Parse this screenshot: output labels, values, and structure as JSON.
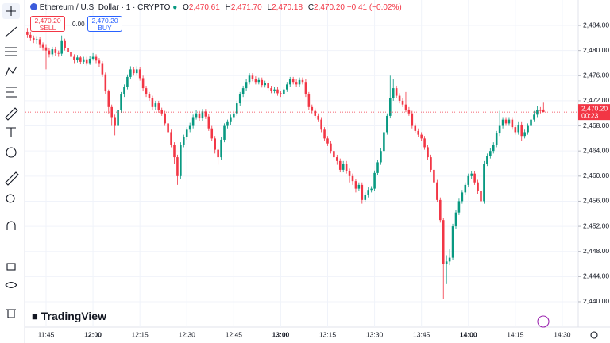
{
  "header": {
    "symbol": "Ethereum / U.S. Dollar · 1 · CRYPTO",
    "o_label": "O",
    "o": "2,470.61",
    "h_label": "H",
    "h": "2,471.70",
    "l_label": "L",
    "l": "2,470.18",
    "c_label": "C",
    "c": "2,470.20",
    "change": "−0.41 (−0.02%)"
  },
  "trade": {
    "sell_price": "2,470.20",
    "sell": "SELL",
    "spread": "0.00",
    "buy_price": "2,470.20",
    "buy": "BUY"
  },
  "logo": "TradingView",
  "chart_data": {
    "type": "candlestick",
    "up_color": "#089981",
    "down_color": "#f23645",
    "x": [
      699,
      700,
      701,
      702,
      703,
      704,
      705,
      706,
      707,
      708,
      709,
      710,
      711,
      712,
      713,
      714,
      715,
      716,
      717,
      718,
      719,
      720,
      721,
      722,
      723,
      724,
      725,
      726,
      727,
      728,
      729,
      730,
      731,
      732,
      733,
      734,
      735,
      736,
      737,
      738,
      739,
      740,
      741,
      742,
      743,
      744,
      745,
      746,
      747,
      748,
      749,
      750,
      751,
      752,
      753,
      754,
      755,
      756,
      757,
      758,
      759,
      760,
      761,
      762,
      763,
      764,
      765,
      766,
      767,
      768,
      769,
      770,
      771,
      772,
      773,
      774,
      775,
      776,
      777,
      778,
      779,
      780,
      781,
      782,
      783,
      784,
      785,
      786,
      787,
      788,
      789,
      790,
      791,
      792,
      793,
      794,
      795,
      796,
      797,
      798,
      799,
      800,
      801,
      802,
      803,
      804,
      805,
      806,
      807,
      808,
      809,
      810,
      811,
      812,
      813,
      814,
      815,
      816,
      817,
      818,
      819,
      820,
      821,
      822,
      823,
      824,
      825,
      826,
      827,
      828,
      829,
      830,
      831,
      832,
      833,
      834,
      835,
      836,
      837,
      838,
      839,
      840,
      841,
      842,
      843,
      844,
      845,
      846,
      847,
      848,
      849,
      850,
      851,
      852,
      853,
      854,
      855,
      856,
      857,
      858,
      859,
      860,
      861,
      862,
      863,
      864
    ],
    "candles": [
      [
        2483.0,
        2483.6,
        2482.0,
        2482.5
      ],
      [
        2482.5,
        2483.0,
        2481.5,
        2482.0
      ],
      [
        2482.0,
        2482.4,
        2481.2,
        2481.6
      ],
      [
        2481.6,
        2482.3,
        2481.1,
        2481.8
      ],
      [
        2481.8,
        2482.2,
        2480.4,
        2480.9
      ],
      [
        2480.9,
        2481.3,
        2480.0,
        2480.5
      ],
      [
        2480.5,
        2480.9,
        2477.0,
        2480.0
      ],
      [
        2480.0,
        2480.4,
        2478.9,
        2479.4
      ],
      [
        2479.4,
        2480.6,
        2479.0,
        2480.2
      ],
      [
        2480.2,
        2480.6,
        2479.2,
        2479.6
      ],
      [
        2479.6,
        2480.0,
        2479.0,
        2479.5
      ],
      [
        2479.5,
        2482.4,
        2479.2,
        2481.5
      ],
      [
        2481.5,
        2481.9,
        2480.0,
        2480.4
      ],
      [
        2480.4,
        2480.8,
        2479.3,
        2479.8
      ],
      [
        2479.8,
        2480.2,
        2478.6,
        2479.0
      ],
      [
        2479.0,
        2479.4,
        2478.0,
        2478.5
      ],
      [
        2478.5,
        2479.3,
        2478.1,
        2478.9
      ],
      [
        2478.9,
        2479.2,
        2477.8,
        2478.2
      ],
      [
        2478.2,
        2479.0,
        2477.9,
        2478.6
      ],
      [
        2478.6,
        2479.0,
        2477.6,
        2478.0
      ],
      [
        2478.0,
        2479.1,
        2477.7,
        2478.7
      ],
      [
        2478.7,
        2479.6,
        2478.4,
        2479.0
      ],
      [
        2479.0,
        2479.4,
        2478.0,
        2478.4
      ],
      [
        2478.4,
        2478.8,
        2477.4,
        2478.0
      ],
      [
        2478.0,
        2478.3,
        2475.8,
        2476.2
      ],
      [
        2476.2,
        2476.5,
        2473.0,
        2473.5
      ],
      [
        2473.5,
        2473.8,
        2470.0,
        2471.0
      ],
      [
        2471.0,
        2471.4,
        2468.0,
        2469.4
      ],
      [
        2469.4,
        2469.8,
        2466.5,
        2468.0
      ],
      [
        2468.0,
        2470.9,
        2467.6,
        2470.5
      ],
      [
        2470.5,
        2473.4,
        2470.1,
        2473.0
      ],
      [
        2473.0,
        2474.6,
        2472.6,
        2474.2
      ],
      [
        2474.2,
        2476.2,
        2473.8,
        2475.8
      ],
      [
        2475.8,
        2477.5,
        2475.4,
        2477.0
      ],
      [
        2477.0,
        2477.4,
        2476.0,
        2476.4
      ],
      [
        2476.4,
        2477.5,
        2476.0,
        2477.0
      ],
      [
        2477.0,
        2477.3,
        2475.2,
        2475.6
      ],
      [
        2475.6,
        2476.0,
        2473.5,
        2474.0
      ],
      [
        2474.0,
        2474.4,
        2472.6,
        2473.0
      ],
      [
        2473.0,
        2473.4,
        2472.0,
        2472.4
      ],
      [
        2472.4,
        2472.8,
        2470.6,
        2471.0
      ],
      [
        2471.0,
        2472.0,
        2470.6,
        2471.6
      ],
      [
        2471.6,
        2472.0,
        2470.1,
        2470.5
      ],
      [
        2470.5,
        2470.9,
        2469.6,
        2470.0
      ],
      [
        2470.0,
        2470.4,
        2468.0,
        2468.4
      ],
      [
        2468.4,
        2468.8,
        2466.6,
        2467.0
      ],
      [
        2467.0,
        2467.4,
        2464.6,
        2465.0
      ],
      [
        2465.0,
        2465.4,
        2462.0,
        2463.0
      ],
      [
        2463.0,
        2463.4,
        2458.6,
        2460.0
      ],
      [
        2460.0,
        2465.4,
        2459.6,
        2465.0
      ],
      [
        2465.0,
        2466.6,
        2464.6,
        2466.2
      ],
      [
        2466.2,
        2467.8,
        2465.8,
        2467.4
      ],
      [
        2467.4,
        2468.5,
        2467.0,
        2468.0
      ],
      [
        2468.0,
        2469.8,
        2467.6,
        2469.4
      ],
      [
        2469.4,
        2470.5,
        2469.0,
        2470.0
      ],
      [
        2470.0,
        2470.4,
        2468.8,
        2469.2
      ],
      [
        2469.2,
        2470.7,
        2468.8,
        2470.3
      ],
      [
        2470.3,
        2470.7,
        2469.1,
        2469.5
      ],
      [
        2469.5,
        2469.9,
        2467.2,
        2467.6
      ],
      [
        2467.6,
        2468.0,
        2465.6,
        2466.0
      ],
      [
        2466.0,
        2466.4,
        2463.6,
        2464.2
      ],
      [
        2464.2,
        2464.6,
        2461.8,
        2463.0
      ],
      [
        2463.0,
        2466.2,
        2462.6,
        2465.8
      ],
      [
        2465.8,
        2468.4,
        2465.4,
        2468.0
      ],
      [
        2468.0,
        2469.0,
        2467.6,
        2468.6
      ],
      [
        2468.6,
        2469.8,
        2468.2,
        2469.4
      ],
      [
        2469.4,
        2470.5,
        2469.0,
        2470.0
      ],
      [
        2470.0,
        2472.0,
        2469.6,
        2471.6
      ],
      [
        2471.6,
        2473.4,
        2471.2,
        2473.0
      ],
      [
        2473.0,
        2474.4,
        2472.6,
        2474.0
      ],
      [
        2474.0,
        2475.4,
        2473.6,
        2475.0
      ],
      [
        2475.0,
        2476.4,
        2474.6,
        2476.0
      ],
      [
        2476.0,
        2476.4,
        2475.1,
        2475.5
      ],
      [
        2475.5,
        2475.9,
        2474.6,
        2475.0
      ],
      [
        2475.0,
        2475.7,
        2474.6,
        2475.3
      ],
      [
        2475.3,
        2475.7,
        2474.1,
        2474.5
      ],
      [
        2474.5,
        2475.2,
        2474.1,
        2474.8
      ],
      [
        2474.8,
        2475.2,
        2473.6,
        2474.0
      ],
      [
        2474.0,
        2474.4,
        2473.2,
        2473.6
      ],
      [
        2473.6,
        2474.2,
        2473.2,
        2473.8
      ],
      [
        2473.8,
        2474.2,
        2472.8,
        2473.2
      ],
      [
        2473.2,
        2473.6,
        2472.6,
        2473.0
      ],
      [
        2473.0,
        2474.2,
        2472.6,
        2473.8
      ],
      [
        2473.8,
        2475.0,
        2473.4,
        2474.6
      ],
      [
        2474.6,
        2475.8,
        2474.2,
        2475.4
      ],
      [
        2475.4,
        2475.8,
        2474.6,
        2475.0
      ],
      [
        2475.0,
        2475.4,
        2474.2,
        2474.6
      ],
      [
        2474.6,
        2475.7,
        2474.2,
        2475.3
      ],
      [
        2475.3,
        2475.7,
        2474.6,
        2475.0
      ],
      [
        2475.0,
        2475.4,
        2472.6,
        2473.0
      ],
      [
        2473.0,
        2473.4,
        2470.6,
        2471.0
      ],
      [
        2471.0,
        2471.4,
        2470.0,
        2470.4
      ],
      [
        2470.4,
        2470.8,
        2469.2,
        2469.6
      ],
      [
        2469.6,
        2470.0,
        2468.6,
        2469.0
      ],
      [
        2469.0,
        2469.4,
        2467.0,
        2467.4
      ],
      [
        2467.4,
        2467.8,
        2465.6,
        2466.0
      ],
      [
        2466.0,
        2466.4,
        2464.8,
        2465.2
      ],
      [
        2465.2,
        2465.6,
        2463.6,
        2464.0
      ],
      [
        2464.0,
        2464.4,
        2462.6,
        2463.0
      ],
      [
        2463.0,
        2463.4,
        2461.8,
        2462.4
      ],
      [
        2462.4,
        2462.8,
        2460.6,
        2461.0
      ],
      [
        2461.0,
        2462.4,
        2460.6,
        2462.0
      ],
      [
        2462.0,
        2462.4,
        2460.4,
        2460.8
      ],
      [
        2460.8,
        2461.2,
        2459.0,
        2460.0
      ],
      [
        2460.0,
        2460.4,
        2458.6,
        2459.2
      ],
      [
        2459.2,
        2459.6,
        2457.4,
        2458.0
      ],
      [
        2458.0,
        2459.0,
        2457.6,
        2458.6
      ],
      [
        2458.6,
        2459.0,
        2455.6,
        2456.2
      ],
      [
        2456.2,
        2457.4,
        2455.8,
        2457.0
      ],
      [
        2457.0,
        2458.2,
        2456.6,
        2457.8
      ],
      [
        2457.8,
        2458.4,
        2457.4,
        2458.0
      ],
      [
        2458.0,
        2460.9,
        2457.6,
        2460.5
      ],
      [
        2460.5,
        2462.6,
        2460.1,
        2462.2
      ],
      [
        2462.2,
        2464.4,
        2461.8,
        2464.0
      ],
      [
        2464.0,
        2467.4,
        2463.6,
        2467.0
      ],
      [
        2467.0,
        2470.0,
        2466.6,
        2469.6
      ],
      [
        2469.6,
        2476.0,
        2469.2,
        2472.4
      ],
      [
        2472.4,
        2475.4,
        2472.0,
        2474.0
      ],
      [
        2474.0,
        2474.4,
        2472.4,
        2472.8
      ],
      [
        2472.8,
        2473.2,
        2471.6,
        2472.0
      ],
      [
        2472.0,
        2472.4,
        2471.0,
        2471.4
      ],
      [
        2471.4,
        2473.4,
        2470.2,
        2470.6
      ],
      [
        2470.6,
        2471.0,
        2469.6,
        2470.0
      ],
      [
        2470.0,
        2470.4,
        2467.6,
        2468.0
      ],
      [
        2468.0,
        2468.4,
        2466.8,
        2467.2
      ],
      [
        2467.2,
        2467.6,
        2466.2,
        2466.6
      ],
      [
        2466.6,
        2467.0,
        2465.6,
        2466.0
      ],
      [
        2466.0,
        2466.4,
        2464.2,
        2464.6
      ],
      [
        2464.6,
        2465.0,
        2462.6,
        2463.0
      ],
      [
        2463.0,
        2463.4,
        2460.6,
        2461.0
      ],
      [
        2461.0,
        2461.4,
        2458.6,
        2459.0
      ],
      [
        2459.0,
        2459.4,
        2455.8,
        2456.2
      ],
      [
        2456.2,
        2456.6,
        2452.6,
        2453.0
      ],
      [
        2453.0,
        2453.4,
        2440.5,
        2446.0
      ],
      [
        2446.0,
        2447.4,
        2442.8,
        2446.4
      ],
      [
        2446.4,
        2448.4,
        2445.8,
        2447.0
      ],
      [
        2447.0,
        2452.4,
        2446.6,
        2452.0
      ],
      [
        2452.0,
        2454.6,
        2451.6,
        2454.2
      ],
      [
        2454.2,
        2456.4,
        2453.8,
        2456.0
      ],
      [
        2456.0,
        2457.8,
        2455.6,
        2457.4
      ],
      [
        2457.4,
        2459.0,
        2457.0,
        2458.6
      ],
      [
        2458.6,
        2460.4,
        2458.2,
        2460.0
      ],
      [
        2460.0,
        2460.8,
        2459.6,
        2460.4
      ],
      [
        2460.4,
        2460.8,
        2458.6,
        2459.0
      ],
      [
        2459.0,
        2459.4,
        2457.2,
        2457.6
      ],
      [
        2457.6,
        2458.0,
        2455.6,
        2456.0
      ],
      [
        2456.0,
        2462.4,
        2455.6,
        2462.0
      ],
      [
        2462.0,
        2463.6,
        2461.6,
        2463.2
      ],
      [
        2463.2,
        2464.4,
        2462.8,
        2464.0
      ],
      [
        2464.0,
        2465.4,
        2463.6,
        2465.0
      ],
      [
        2465.0,
        2467.2,
        2464.6,
        2466.8
      ],
      [
        2466.8,
        2470.4,
        2466.4,
        2468.0
      ],
      [
        2468.0,
        2469.4,
        2467.6,
        2469.0
      ],
      [
        2469.0,
        2469.4,
        2468.0,
        2468.4
      ],
      [
        2468.4,
        2469.4,
        2468.0,
        2469.0
      ],
      [
        2469.0,
        2469.4,
        2467.4,
        2467.8
      ],
      [
        2467.8,
        2468.2,
        2466.6,
        2467.0
      ],
      [
        2467.0,
        2468.6,
        2466.6,
        2468.2
      ],
      [
        2468.2,
        2468.6,
        2465.6,
        2466.4
      ],
      [
        2466.4,
        2467.4,
        2466.0,
        2467.0
      ],
      [
        2467.0,
        2468.4,
        2466.6,
        2468.0
      ],
      [
        2468.0,
        2469.4,
        2467.6,
        2469.0
      ],
      [
        2469.0,
        2470.4,
        2468.6,
        2469.8
      ],
      [
        2469.8,
        2471.2,
        2469.4,
        2470.6
      ],
      [
        2470.6,
        2471.0,
        2470.0,
        2470.4
      ],
      [
        2470.61,
        2471.7,
        2470.18,
        2470.2
      ]
    ],
    "xlim": [
      698.4,
      875.1
    ],
    "xticks": [
      {
        "value": 705,
        "label": "11:45"
      },
      {
        "value": 720,
        "label": "12:00"
      },
      {
        "value": 735,
        "label": "12:15"
      },
      {
        "value": 750,
        "label": "12:30"
      },
      {
        "value": 765,
        "label": "12:45"
      },
      {
        "value": 780,
        "label": "13:00"
      },
      {
        "value": 795,
        "label": "13:15"
      },
      {
        "value": 810,
        "label": "13:30"
      },
      {
        "value": 825,
        "label": "13:45"
      },
      {
        "value": 840,
        "label": "14:00"
      },
      {
        "value": 855,
        "label": "14:15"
      },
      {
        "value": 870,
        "label": "14:30"
      }
    ],
    "ylim": [
      2435.95,
      2488.05
    ],
    "yticks": [
      {
        "value": 2440,
        "label": "2,440.00"
      },
      {
        "value": 2444,
        "label": "2,444.00"
      },
      {
        "value": 2448,
        "label": "2,448.00"
      },
      {
        "value": 2452,
        "label": "2,452.00"
      },
      {
        "value": 2456,
        "label": "2,456.00"
      },
      {
        "value": 2460,
        "label": "2,460.00"
      },
      {
        "value": 2464,
        "label": "2,464.00"
      },
      {
        "value": 2468,
        "label": "2,468.00"
      },
      {
        "value": 2472,
        "label": "2,472.00"
      },
      {
        "value": 2476,
        "label": "2,476.00"
      },
      {
        "value": 2480,
        "label": "2,480.00"
      },
      {
        "value": 2484,
        "label": "2,484.00"
      }
    ],
    "last_price_label": "2,470.20",
    "countdown": "00:23"
  }
}
